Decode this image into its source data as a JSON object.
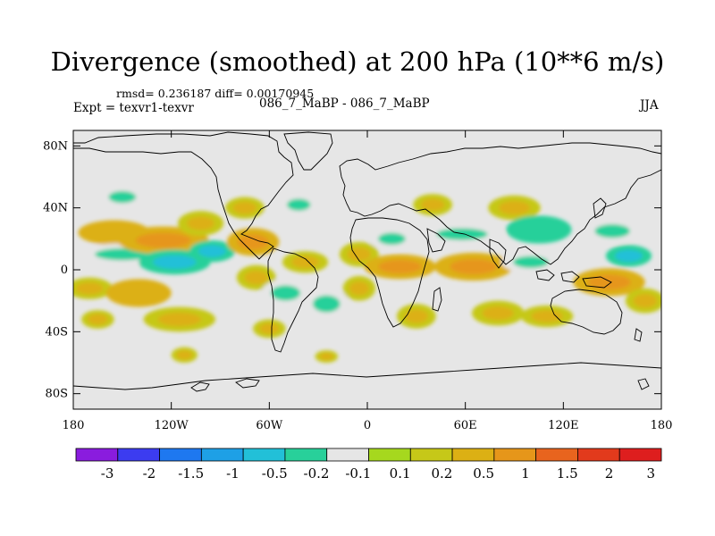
{
  "title": "Divergence (smoothed) at 200 hPa (10**6 m/s)",
  "stats_line": "rmsd= 0.236187  diff= 0.00170945",
  "experiment_line": "Expt = texvr1-texvr",
  "experiment_names": "086_7_MaBP - 086_7_MaBP",
  "season": "JJA",
  "map": {
    "projection": "cylindrical-equidistant",
    "lon_range": [
      -180,
      180
    ],
    "lat_range": [
      -90,
      90
    ],
    "y_ticks": [
      {
        "lat": 80,
        "label": "80N"
      },
      {
        "lat": 40,
        "label": "40N"
      },
      {
        "lat": 0,
        "label": "0"
      },
      {
        "lat": -40,
        "label": "40S"
      },
      {
        "lat": -80,
        "label": "80S"
      }
    ],
    "x_ticks": [
      {
        "lon": -180,
        "label": "180"
      },
      {
        "lon": -120,
        "label": "120W"
      },
      {
        "lon": -60,
        "label": "60W"
      },
      {
        "lon": 0,
        "label": "0"
      },
      {
        "lon": 60,
        "label": "60E"
      },
      {
        "lon": 120,
        "label": "120E"
      },
      {
        "lon": 180,
        "label": "180"
      }
    ],
    "background_color": "#e6e6e6"
  },
  "colorbar": {
    "colors": [
      "#8a1cde",
      "#3c3cf0",
      "#1e78f0",
      "#1ea0e6",
      "#22c0d8",
      "#28d09a",
      "#e6e6e6",
      "#a6d81e",
      "#c6c818",
      "#dcb014",
      "#e6961a",
      "#e8641e",
      "#e23a1c",
      "#de1e1e"
    ],
    "labels": [
      "-3",
      "-2",
      "-1.5",
      "-1",
      "-0.5",
      "-0.2",
      "-0.1",
      "0.1",
      "0.2",
      "0.5",
      "1",
      "1.5",
      "2",
      "3"
    ]
  },
  "field_blobs": [
    {
      "lon": -150,
      "lat": 47,
      "rx": 14,
      "ry": 7,
      "v": -0.35
    },
    {
      "lon": -155,
      "lat": 24,
      "rx": 22,
      "ry": 8,
      "v": 0.45
    },
    {
      "lon": -150,
      "lat": 10,
      "rx": 28,
      "ry": 7,
      "v": -0.35
    },
    {
      "lon": -170,
      "lat": -12,
      "rx": 14,
      "ry": 7,
      "v": 0.3
    },
    {
      "lon": -125,
      "lat": 19,
      "rx": 28,
      "ry": 9,
      "v": 0.7
    },
    {
      "lon": -118,
      "lat": 5,
      "rx": 22,
      "ry": 8,
      "v": -0.6
    },
    {
      "lon": -95,
      "lat": 12,
      "rx": 14,
      "ry": 7,
      "v": -0.6
    },
    {
      "lon": -102,
      "lat": 30,
      "rx": 14,
      "ry": 8,
      "v": 0.3
    },
    {
      "lon": -140,
      "lat": -15,
      "rx": 20,
      "ry": 9,
      "v": 0.45
    },
    {
      "lon": -165,
      "lat": -32,
      "rx": 10,
      "ry": 6,
      "v": 0.35
    },
    {
      "lon": -115,
      "lat": -32,
      "rx": 22,
      "ry": 8,
      "v": 0.35
    },
    {
      "lon": -70,
      "lat": 18,
      "rx": 16,
      "ry": 9,
      "v": 0.5
    },
    {
      "lon": -75,
      "lat": 40,
      "rx": 12,
      "ry": 7,
      "v": 0.25
    },
    {
      "lon": -68,
      "lat": -5,
      "rx": 12,
      "ry": 8,
      "v": 0.3
    },
    {
      "lon": -50,
      "lat": -15,
      "rx": 15,
      "ry": 9,
      "v": -0.35
    },
    {
      "lon": -42,
      "lat": 42,
      "rx": 12,
      "ry": 7,
      "v": -0.35
    },
    {
      "lon": -38,
      "lat": 5,
      "rx": 14,
      "ry": 7,
      "v": 0.35
    },
    {
      "lon": -25,
      "lat": -22,
      "rx": 14,
      "ry": 10,
      "v": -0.35
    },
    {
      "lon": -5,
      "lat": 10,
      "rx": 12,
      "ry": 8,
      "v": 0.3
    },
    {
      "lon": -5,
      "lat": -12,
      "rx": 10,
      "ry": 8,
      "v": 0.35
    },
    {
      "lon": -60,
      "lat": -38,
      "rx": 10,
      "ry": 6,
      "v": 0.3
    },
    {
      "lon": 20,
      "lat": 2,
      "rx": 22,
      "ry": 8,
      "v": 0.55
    },
    {
      "lon": 15,
      "lat": 20,
      "rx": 14,
      "ry": 7,
      "v": -0.35
    },
    {
      "lon": 30,
      "lat": -30,
      "rx": 12,
      "ry": 8,
      "v": 0.3
    },
    {
      "lon": 65,
      "lat": 2,
      "rx": 24,
      "ry": 9,
      "v": 0.7
    },
    {
      "lon": 58,
      "lat": 23,
      "rx": 26,
      "ry": 7,
      "v": -0.35
    },
    {
      "lon": 40,
      "lat": 42,
      "rx": 12,
      "ry": 7,
      "v": 0.3
    },
    {
      "lon": 90,
      "lat": 40,
      "rx": 16,
      "ry": 8,
      "v": 0.3
    },
    {
      "lon": 105,
      "lat": 26,
      "rx": 20,
      "ry": 9,
      "v": -0.5
    },
    {
      "lon": 100,
      "lat": 5,
      "rx": 18,
      "ry": 7,
      "v": -0.35
    },
    {
      "lon": 80,
      "lat": -28,
      "rx": 16,
      "ry": 8,
      "v": 0.3
    },
    {
      "lon": 110,
      "lat": -30,
      "rx": 16,
      "ry": 7,
      "v": 0.3
    },
    {
      "lon": 148,
      "lat": -8,
      "rx": 22,
      "ry": 9,
      "v": 0.8
    },
    {
      "lon": 150,
      "lat": 25,
      "rx": 18,
      "ry": 8,
      "v": -0.35
    },
    {
      "lon": 160,
      "lat": 9,
      "rx": 14,
      "ry": 7,
      "v": -0.6
    },
    {
      "lon": 170,
      "lat": -20,
      "rx": 12,
      "ry": 8,
      "v": 0.3
    },
    {
      "lon": -112,
      "lat": -55,
      "rx": 8,
      "ry": 5,
      "v": 0.35
    },
    {
      "lon": -25,
      "lat": -56,
      "rx": 7,
      "ry": 4,
      "v": 0.25
    }
  ]
}
